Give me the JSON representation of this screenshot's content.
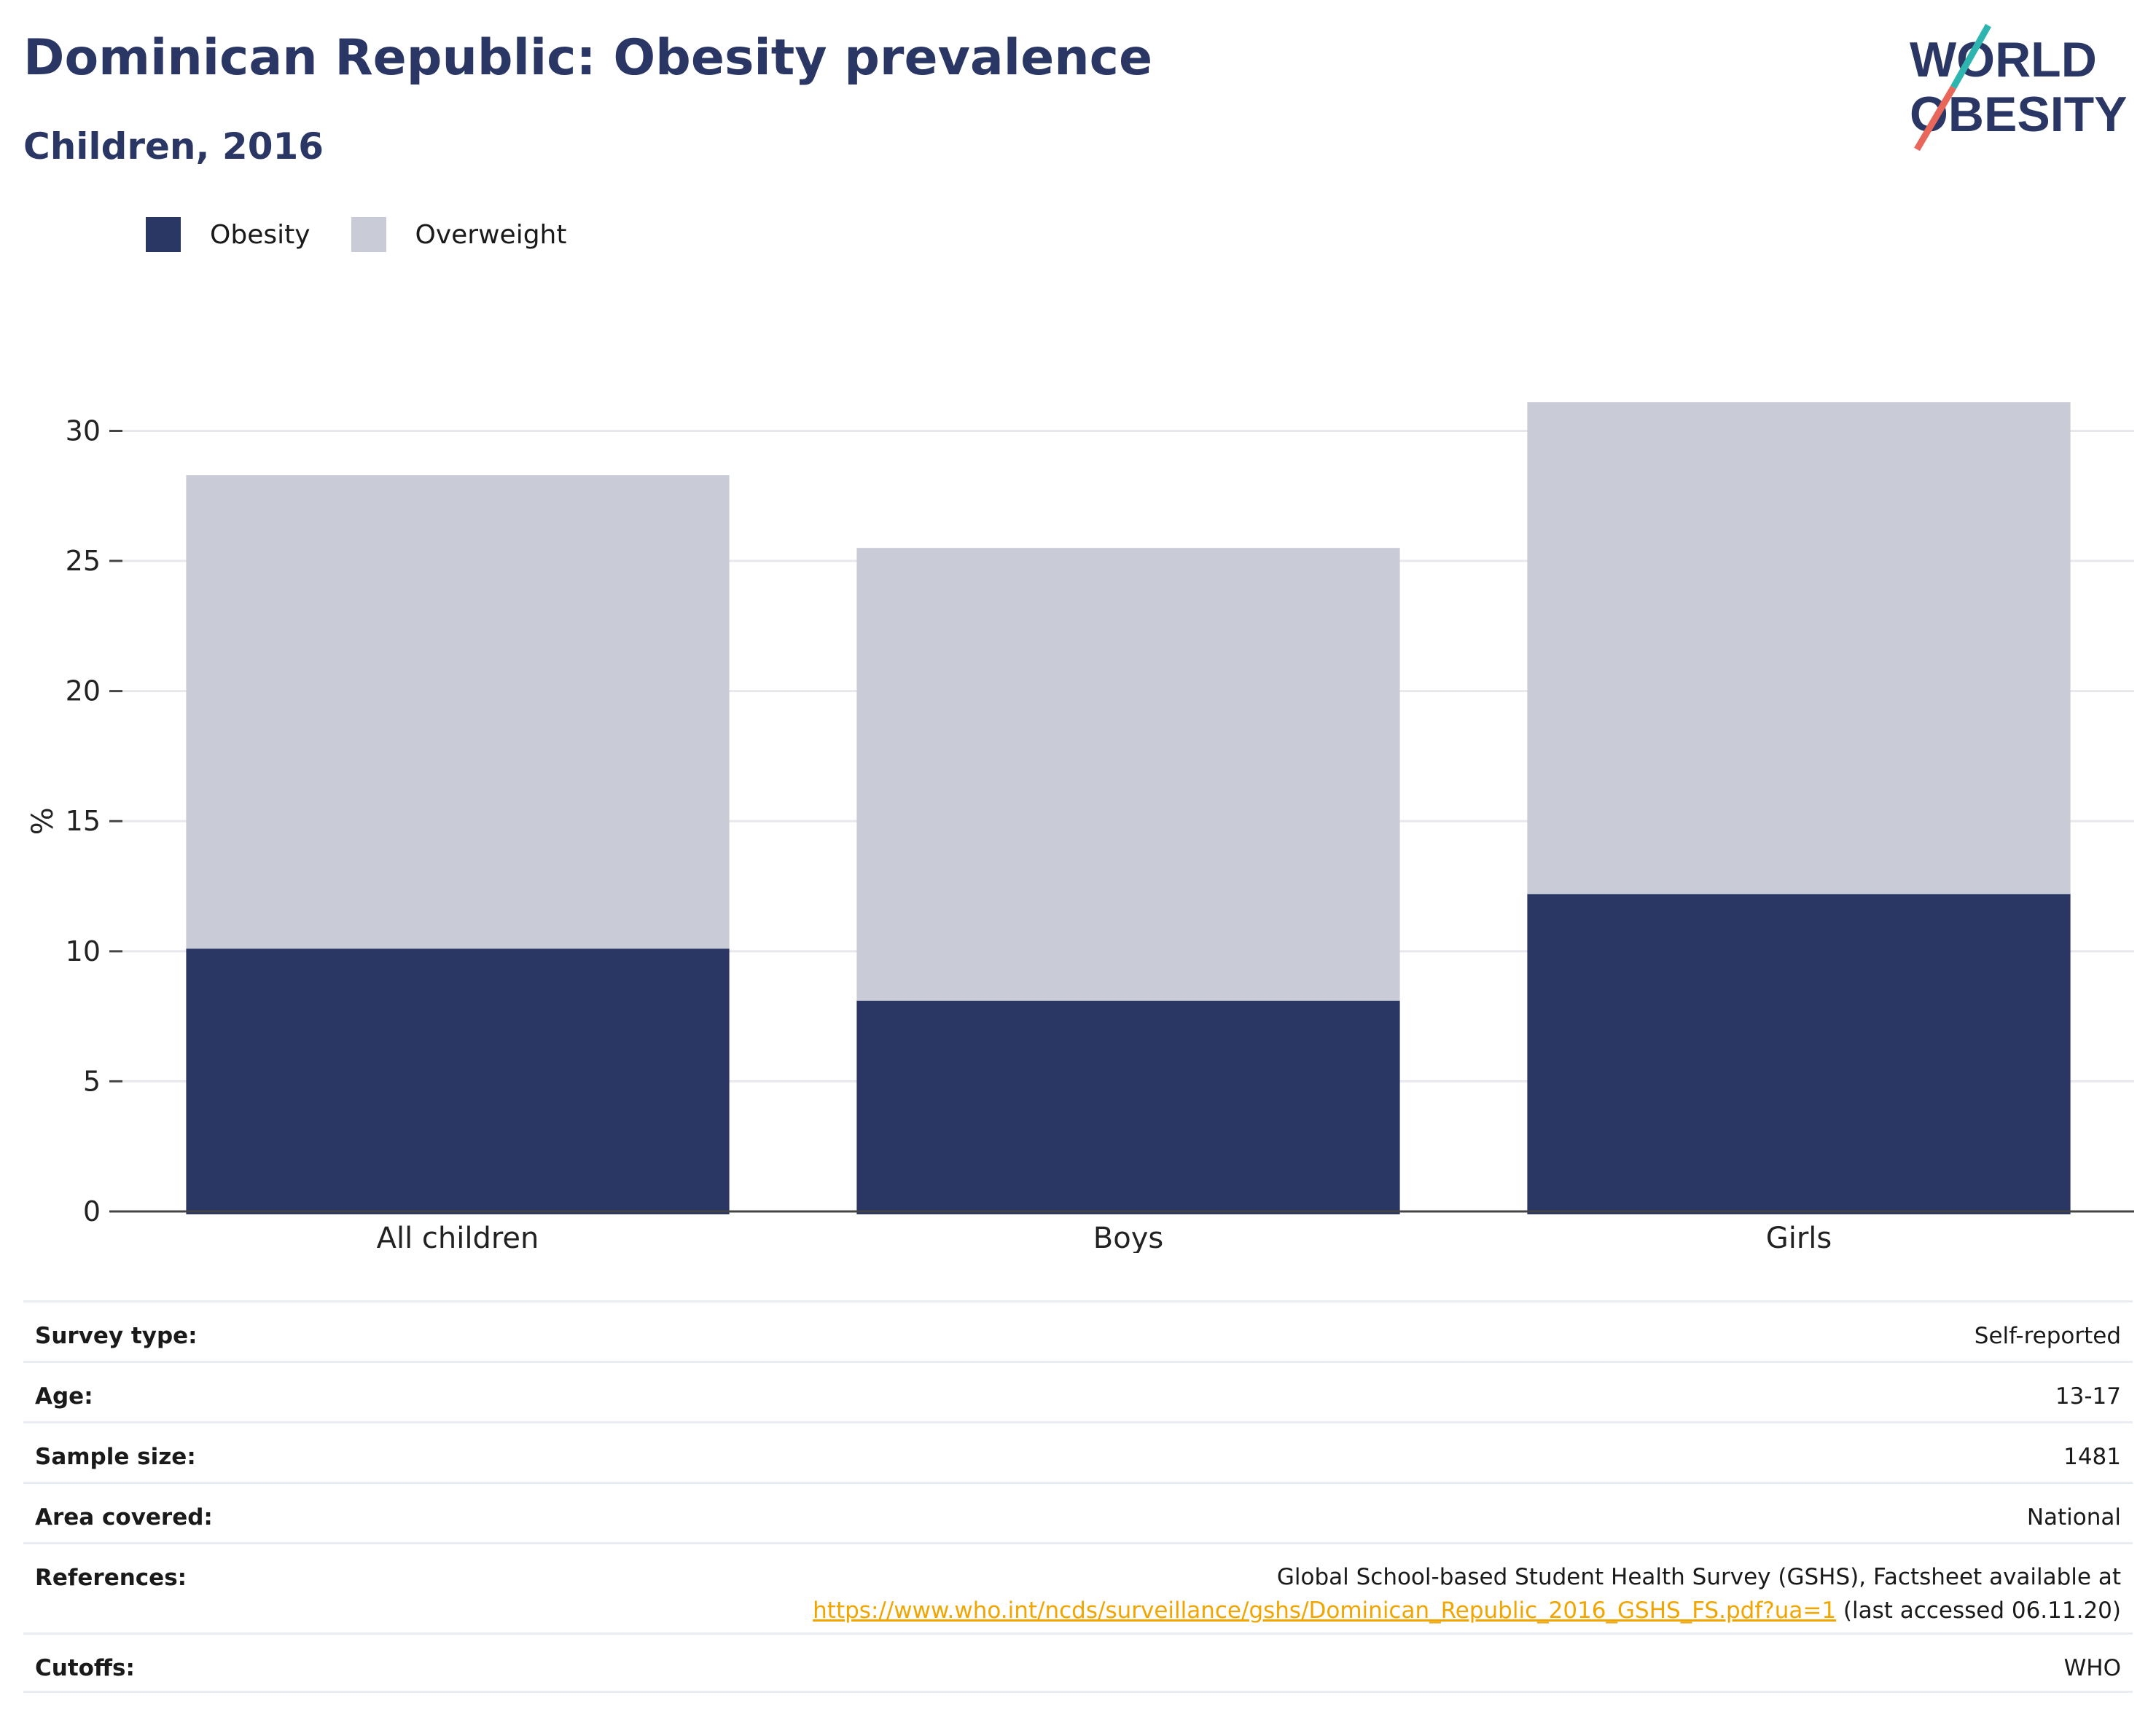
{
  "header": {
    "title": "Dominican Republic: Obesity prevalence",
    "subtitle": "Children, 2016"
  },
  "logo": {
    "line1": "WORLD",
    "line2": "OBESITY"
  },
  "colors": {
    "obesity": "#2a3663",
    "overweight": "#c9cbd7",
    "accent_teal": "#2fb5b0",
    "accent_red": "#e8675a",
    "link": "#f0a500"
  },
  "chart_data": {
    "type": "bar",
    "stacked": true,
    "categories": [
      "All children",
      "Boys",
      "Girls"
    ],
    "series": [
      {
        "name": "Obesity",
        "values": [
          10.1,
          8.1,
          12.2
        ]
      },
      {
        "name": "Overweight",
        "values": [
          18.2,
          17.4,
          18.9
        ]
      }
    ],
    "ylabel": "%",
    "ylim": [
      0,
      32
    ],
    "yticks": [
      0,
      5,
      10,
      15,
      20,
      25,
      30
    ],
    "grid": true,
    "legend_position": "top-left"
  },
  "info": {
    "survey_type": {
      "label": "Survey type:",
      "value": "Self-reported"
    },
    "age": {
      "label": "Age:",
      "value": "13-17"
    },
    "sample_size": {
      "label": "Sample size:",
      "value": "1481"
    },
    "area": {
      "label": "Area covered:",
      "value": "National"
    },
    "references": {
      "label": "References:",
      "text": "Global School-based Student Health Survey (GSHS), Factsheet available at",
      "link": "https://www.who.int/ncds/surveillance/gshs/Dominican_Republic_2016_GSHS_FS.pdf?ua=1",
      "suffix": " (last accessed 06.11.20)"
    },
    "cutoffs": {
      "label": "Cutoffs:",
      "value": "WHO"
    }
  }
}
